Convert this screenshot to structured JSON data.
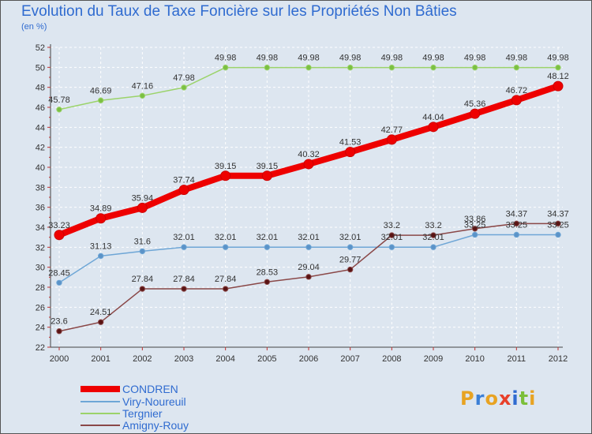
{
  "title": "Evolution du Taux de Taxe Foncière sur les Propriétés Non Bâties",
  "subtitle": "(en %)",
  "colors": {
    "background": "#dde6f0",
    "title": "#2f6bd0",
    "grid": "#ffffff"
  },
  "logo": {
    "text": "Proxiti",
    "letters": [
      "P",
      "r",
      "o",
      "x",
      "i",
      "t",
      "i"
    ],
    "colors": [
      "#e8a322",
      "#3b7fd6",
      "#e8a322",
      "#e8402a",
      "#2f6bd0",
      "#7bbf3a",
      "#e8a322"
    ]
  },
  "chart_data": {
    "type": "line",
    "title": "Evolution du Taux de Taxe Foncière sur les Propriétés Non Bâties",
    "ylabel": "(en %)",
    "xlabel": "",
    "ylim": [
      22,
      52
    ],
    "yticks": [
      "22",
      "24",
      "26",
      "28",
      "30",
      "32",
      "34",
      "36",
      "38",
      "40",
      "42",
      "44",
      "46",
      "48",
      "50",
      "52"
    ],
    "x": [
      "2000",
      "2001",
      "2002",
      "2003",
      "2004",
      "2005",
      "2006",
      "2007",
      "2008",
      "2009",
      "2010",
      "2011",
      "2012"
    ],
    "grid": true,
    "series": [
      {
        "name": "CONDREN",
        "color": "#ee0000",
        "width": 8,
        "marker_fill": "#ee0000",
        "values": [
          33.23,
          34.89,
          35.94,
          37.74,
          39.15,
          39.15,
          40.32,
          41.53,
          42.77,
          44.04,
          45.36,
          46.72,
          48.12
        ],
        "labels": [
          "33.23",
          "34.89",
          "35.94",
          "37.74",
          "39.15",
          "39.15",
          "40.32",
          "41.53",
          "42.77",
          "44.04",
          "45.36",
          "46.72",
          "48.12"
        ]
      },
      {
        "name": "Viry-Noureuil",
        "color": "#6ea6d6",
        "width": 1.5,
        "marker_fill": "#5b93c8",
        "values": [
          28.45,
          31.13,
          31.6,
          32.01,
          32.01,
          32.01,
          32.01,
          32.01,
          32.01,
          32.01,
          33.25,
          33.25,
          33.25
        ],
        "labels": [
          "28.45",
          "31.13",
          "31.6",
          "32.01",
          "32.01",
          "32.01",
          "32.01",
          "32.01",
          "32.01",
          "32.01",
          "33.25",
          "33.25",
          "33.25"
        ]
      },
      {
        "name": "Tergnier",
        "color": "#9bd36a",
        "width": 1.5,
        "marker_fill": "#7bc043",
        "values": [
          45.78,
          46.69,
          47.16,
          47.98,
          49.98,
          49.98,
          49.98,
          49.98,
          49.98,
          49.98,
          49.98,
          49.98,
          49.98
        ],
        "labels": [
          "45.78",
          "46.69",
          "47.16",
          "47.98",
          "49.98",
          "49.98",
          "49.98",
          "49.98",
          "49.98",
          "49.98",
          "49.98",
          "49.98",
          "49.98"
        ]
      },
      {
        "name": "Amigny-Rouy",
        "color": "#8a4848",
        "width": 1.5,
        "marker_fill": "#5a1414",
        "values": [
          23.6,
          24.51,
          27.84,
          27.84,
          27.84,
          28.53,
          29.04,
          29.77,
          33.2,
          33.2,
          33.86,
          34.37,
          34.37
        ],
        "labels": [
          "23.6",
          "24.51",
          "27.84",
          "27.84",
          "27.84",
          "28.53",
          "29.04",
          "29.77",
          "33.2",
          "33.2",
          "33.86",
          "34.37",
          "34.37"
        ]
      }
    ]
  }
}
